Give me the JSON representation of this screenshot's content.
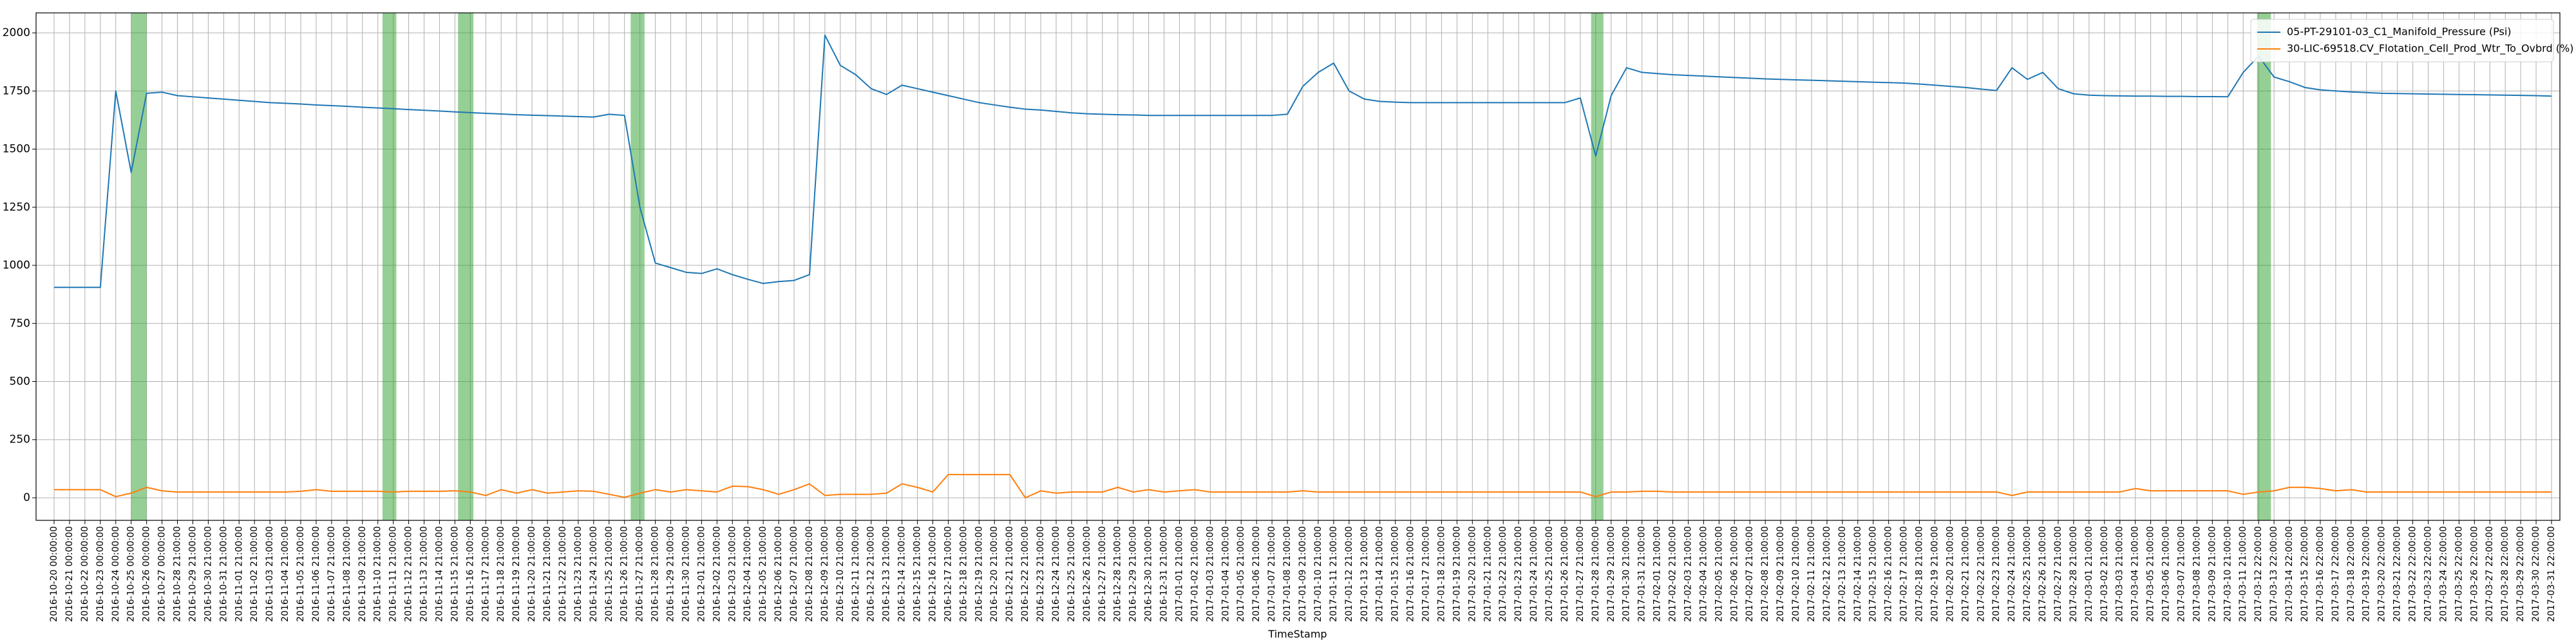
{
  "chart_data": {
    "type": "line",
    "x_label": "TimeStamp",
    "categories": [
      "2016-10-20 00:00:00",
      "2016-10-21 00:00:00",
      "2016-10-22 00:00:00",
      "2016-10-23 00:00:00",
      "2016-10-24 00:00:00",
      "2016-10-25 00:00:00",
      "2016-10-26 00:00:00",
      "2016-10-27 00:00:00",
      "2016-10-28 21:00:00",
      "2016-10-29 21:00:00",
      "2016-10-30 21:00:00",
      "2016-10-31 21:00:00",
      "2016-11-01 21:00:00",
      "2016-11-02 21:00:00",
      "2016-11-03 21:00:00",
      "2016-11-04 21:00:00",
      "2016-11-05 21:00:00",
      "2016-11-06 21:00:00",
      "2016-11-07 21:00:00",
      "2016-11-08 21:00:00",
      "2016-11-09 21:00:00",
      "2016-11-10 21:00:00",
      "2016-11-11 21:00:00",
      "2016-11-12 21:00:00",
      "2016-11-13 21:00:00",
      "2016-11-14 21:00:00",
      "2016-11-15 21:00:00",
      "2016-11-16 21:00:00",
      "2016-11-17 21:00:00",
      "2016-11-18 21:00:00",
      "2016-11-19 21:00:00",
      "2016-11-20 21:00:00",
      "2016-11-21 21:00:00",
      "2016-11-22 21:00:00",
      "2016-11-23 21:00:00",
      "2016-11-24 21:00:00",
      "2016-11-25 21:00:00",
      "2016-11-26 21:00:00",
      "2016-11-27 21:00:00",
      "2016-11-28 21:00:00",
      "2016-11-29 21:00:00",
      "2016-11-30 21:00:00",
      "2016-12-01 21:00:00",
      "2016-12-02 21:00:00",
      "2016-12-03 21:00:00",
      "2016-12-04 21:00:00",
      "2016-12-05 21:00:00",
      "2016-12-06 21:00:00",
      "2016-12-07 21:00:00",
      "2016-12-08 21:00:00",
      "2016-12-09 21:00:00",
      "2016-12-10 21:00:00",
      "2016-12-11 21:00:00",
      "2016-12-12 21:00:00",
      "2016-12-13 21:00:00",
      "2016-12-14 21:00:00",
      "2016-12-15 21:00:00",
      "2016-12-16 21:00:00",
      "2016-12-17 21:00:00",
      "2016-12-18 21:00:00",
      "2016-12-19 21:00:00",
      "2016-12-20 21:00:00",
      "2016-12-21 21:00:00",
      "2016-12-22 21:00:00",
      "2016-12-23 21:00:00",
      "2016-12-24 21:00:00",
      "2016-12-25 21:00:00",
      "2016-12-26 21:00:00",
      "2016-12-27 21:00:00",
      "2016-12-28 21:00:00",
      "2016-12-29 21:00:00",
      "2016-12-30 21:00:00",
      "2016-12-31 21:00:00",
      "2017-01-01 21:00:00",
      "2017-01-02 21:00:00",
      "2017-01-03 21:00:00",
      "2017-01-04 21:00:00",
      "2017-01-05 21:00:00",
      "2017-01-06 21:00:00",
      "2017-01-07 21:00:00",
      "2017-01-08 21:00:00",
      "2017-01-09 21:00:00",
      "2017-01-10 21:00:00",
      "2017-01-11 21:00:00",
      "2017-01-12 21:00:00",
      "2017-01-13 21:00:00",
      "2017-01-14 21:00:00",
      "2017-01-15 21:00:00",
      "2017-01-16 21:00:00",
      "2017-01-17 21:00:00",
      "2017-01-18 21:00:00",
      "2017-01-19 21:00:00",
      "2017-01-20 21:00:00",
      "2017-01-21 21:00:00",
      "2017-01-22 21:00:00",
      "2017-01-23 21:00:00",
      "2017-01-24 21:00:00",
      "2017-01-25 21:00:00",
      "2017-01-26 21:00:00",
      "2017-01-27 21:00:00",
      "2017-01-28 21:00:00",
      "2017-01-29 21:00:00",
      "2017-01-30 21:00:00",
      "2017-01-31 21:00:00",
      "2017-02-01 21:00:00",
      "2017-02-02 21:00:00",
      "2017-02-03 21:00:00",
      "2017-02-04 21:00:00",
      "2017-02-05 21:00:00",
      "2017-02-06 21:00:00",
      "2017-02-07 21:00:00",
      "2017-02-08 21:00:00",
      "2017-02-09 21:00:00",
      "2017-02-10 21:00:00",
      "2017-02-11 21:00:00",
      "2017-02-12 21:00:00",
      "2017-02-13 21:00:00",
      "2017-02-14 21:00:00",
      "2017-02-15 21:00:00",
      "2017-02-16 21:00:00",
      "2017-02-17 21:00:00",
      "2017-02-18 21:00:00",
      "2017-02-19 21:00:00",
      "2017-02-20 21:00:00",
      "2017-02-21 21:00:00",
      "2017-02-22 21:00:00",
      "2017-02-23 21:00:00",
      "2017-02-24 21:00:00",
      "2017-02-25 21:00:00",
      "2017-02-26 21:00:00",
      "2017-02-27 21:00:00",
      "2017-02-28 21:00:00",
      "2017-03-01 21:00:00",
      "2017-03-02 21:00:00",
      "2017-03-03 21:00:00",
      "2017-03-04 21:00:00",
      "2017-03-05 21:00:00",
      "2017-03-06 21:00:00",
      "2017-03-07 21:00:00",
      "2017-03-08 21:00:00",
      "2017-03-09 21:00:00",
      "2017-03-10 21:00:00",
      "2017-03-11 21:00:00",
      "2017-03-12 22:00:00",
      "2017-03-13 22:00:00",
      "2017-03-14 22:00:00",
      "2017-03-15 22:00:00",
      "2017-03-16 22:00:00",
      "2017-03-17 22:00:00",
      "2017-03-18 22:00:00",
      "2017-03-19 22:00:00",
      "2017-03-20 22:00:00",
      "2017-03-21 22:00:00",
      "2017-03-22 22:00:00",
      "2017-03-23 22:00:00",
      "2017-03-24 22:00:00",
      "2017-03-25 22:00:00",
      "2017-03-26 22:00:00",
      "2017-03-27 22:00:00",
      "2017-03-28 22:00:00",
      "2017-03-29 22:00:00",
      "2017-03-30 22:00:00",
      "2017-03-31 22:00:00"
    ],
    "series": [
      {
        "name": "05-PT-29101-03_C1_Manifold_Pressure (Psi)",
        "color": "#1f77b4",
        "values": [
          905,
          905,
          905,
          905,
          1750,
          1400,
          1740,
          1745,
          1730,
          1725,
          1720,
          1715,
          1710,
          1705,
          1700,
          1697,
          1694,
          1690,
          1687,
          1684,
          1680,
          1677,
          1674,
          1670,
          1667,
          1664,
          1660,
          1657,
          1654,
          1651,
          1648,
          1646,
          1644,
          1642,
          1640,
          1638,
          1650,
          1645,
          1250,
          1010,
          990,
          970,
          965,
          985,
          960,
          940,
          922,
          930,
          935,
          960,
          1990,
          1860,
          1820,
          1760,
          1735,
          1775,
          1760,
          1745,
          1730,
          1715,
          1700,
          1690,
          1680,
          1672,
          1668,
          1662,
          1656,
          1652,
          1650,
          1648,
          1647,
          1645,
          1645,
          1645,
          1645,
          1645,
          1645,
          1645,
          1645,
          1645,
          1650,
          1770,
          1830,
          1870,
          1750,
          1715,
          1705,
          1702,
          1700,
          1700,
          1700,
          1700,
          1700,
          1700,
          1700,
          1700,
          1700,
          1700,
          1700,
          1720,
          1470,
          1730,
          1850,
          1830,
          1825,
          1820,
          1817,
          1814,
          1811,
          1808,
          1805,
          1802,
          1800,
          1798,
          1796,
          1794,
          1792,
          1790,
          1788,
          1786,
          1784,
          1780,
          1775,
          1770,
          1765,
          1758,
          1752,
          1850,
          1800,
          1830,
          1760,
          1738,
          1732,
          1730,
          1729,
          1728,
          1728,
          1727,
          1727,
          1726,
          1726,
          1725,
          1830,
          1900,
          1810,
          1790,
          1765,
          1755,
          1750,
          1746,
          1743,
          1740,
          1739,
          1738,
          1737,
          1736,
          1735,
          1734,
          1733,
          1732,
          1731,
          1730,
          1728
        ]
      },
      {
        "name": "30-LIC-69518.CV_Flotation_Cell_Prod_Wtr_To_Ovbrd (%)",
        "color": "#ff7f0e",
        "values": [
          35,
          35,
          35,
          35,
          5,
          20,
          45,
          30,
          25,
          25,
          25,
          25,
          25,
          25,
          25,
          25,
          28,
          35,
          28,
          28,
          28,
          28,
          25,
          28,
          28,
          28,
          30,
          25,
          10,
          35,
          20,
          35,
          20,
          25,
          30,
          28,
          15,
          2,
          20,
          35,
          25,
          35,
          30,
          25,
          50,
          48,
          35,
          15,
          35,
          60,
          10,
          15,
          15,
          15,
          20,
          60,
          45,
          25,
          100,
          100,
          100,
          100,
          100,
          0,
          30,
          20,
          25,
          25,
          25,
          45,
          25,
          35,
          25,
          30,
          35,
          25,
          25,
          25,
          25,
          25,
          25,
          30,
          25,
          25,
          25,
          25,
          25,
          25,
          25,
          25,
          25,
          25,
          25,
          25,
          25,
          25,
          25,
          25,
          25,
          25,
          5,
          25,
          25,
          28,
          28,
          25,
          25,
          25,
          25,
          25,
          25,
          25,
          25,
          25,
          25,
          25,
          25,
          25,
          25,
          25,
          25,
          25,
          25,
          25,
          25,
          25,
          25,
          10,
          25,
          25,
          25,
          25,
          25,
          25,
          25,
          40,
          30,
          30,
          30,
          30,
          30,
          30,
          15,
          25,
          30,
          45,
          45,
          40,
          30,
          35,
          25,
          25,
          25,
          25,
          25,
          25,
          25,
          25,
          25,
          25,
          25,
          25,
          25
        ]
      }
    ],
    "shaded_spans": [
      {
        "start": 5.0,
        "end": 6.0
      },
      {
        "start": 21.3,
        "end": 22.2
      },
      {
        "start": 26.2,
        "end": 27.2
      },
      {
        "start": 37.4,
        "end": 38.3
      },
      {
        "start": 99.7,
        "end": 100.5
      },
      {
        "start": 142.9,
        "end": 143.8
      }
    ],
    "shaded_color": "#2ca02c",
    "ylim": [
      -97,
      2086
    ],
    "yticks": [
      0,
      250,
      500,
      750,
      1000,
      1250,
      1500,
      1750,
      2000
    ],
    "grid": true,
    "legend": "upper right"
  }
}
